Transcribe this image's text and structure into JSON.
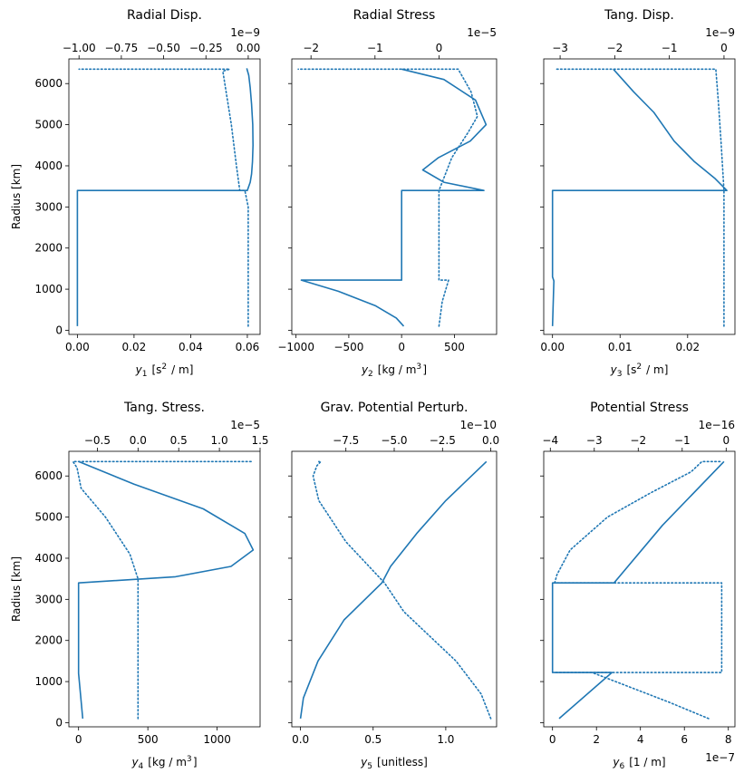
{
  "chart_data": [
    {
      "type": "line",
      "title": "Radial Disp.",
      "xlabel": "$y_1$ [s$^2$ / m]",
      "ylabel": "Radius [km]",
      "ylim": [
        -100,
        6600
      ],
      "yticks": [
        0,
        1000,
        2000,
        3000,
        4000,
        5000,
        6000
      ],
      "bottom_axis": {
        "lim": [
          -0.003,
          0.0645
        ],
        "ticks": [
          0,
          0.02,
          0.04,
          0.06
        ],
        "ticklabels": [
          "0.00",
          "0.02",
          "0.04",
          "0.06"
        ]
      },
      "top_axis": {
        "lim": [
          -1.06,
          0.07
        ],
        "ticks": [
          -1.0,
          -0.75,
          -0.5,
          -0.25,
          0.0
        ],
        "ticklabels": [
          "−1.00",
          "−0.75",
          "−0.50",
          "−0.25",
          "0.00"
        ],
        "exponent": "1e−9"
      },
      "series": [
        {
          "style": "solid",
          "axis": "bottom",
          "x": [
            0.0,
            0.0,
            0.06,
            0.061,
            0.0615,
            0.0618,
            0.062,
            0.0619,
            0.0615,
            0.061,
            0.0605,
            0.0598
          ],
          "y": [
            100,
            3400,
            3400,
            3600,
            3800,
            4100,
            4500,
            5000,
            5500,
            5900,
            6200,
            6370
          ]
        },
        {
          "style": "dotted",
          "axis": "top",
          "x": [
            0.0,
            0.0,
            -0.02,
            -0.05,
            -0.07,
            -0.1,
            -0.15,
            -0.11,
            -0.9,
            -1.0
          ],
          "y": [
            100,
            3000,
            3400,
            3400,
            4000,
            5000,
            6300,
            6350,
            6350,
            6350
          ]
        }
      ]
    },
    {
      "type": "line",
      "title": "Radial Stress",
      "xlabel": "$y_2$ [kg / m$^3$]",
      "ylabel": "",
      "ylim": [
        -100,
        6600
      ],
      "yticks": [
        0,
        1000,
        2000,
        3000,
        4000,
        5000,
        6000
      ],
      "bottom_axis": {
        "lim": [
          -1040,
          900
        ],
        "ticks": [
          -1000,
          -500,
          0,
          500
        ],
        "ticklabels": [
          "−1000",
          "−500",
          "0",
          "500"
        ]
      },
      "top_axis": {
        "lim": [
          -2.3,
          0.9
        ],
        "ticks": [
          -2,
          -1,
          0
        ],
        "ticklabels": [
          "−2",
          "−1",
          "0"
        ],
        "exponent": "1e−5"
      },
      "series": [
        {
          "style": "solid",
          "axis": "bottom",
          "x": [
            20,
            -50,
            -250,
            -600,
            -950,
            0,
            0,
            780,
            400,
            200,
            350,
            650,
            800,
            700,
            400,
            0
          ],
          "y": [
            100,
            300,
            600,
            950,
            1220,
            1220,
            3400,
            3400,
            3600,
            3900,
            4200,
            4600,
            5000,
            5600,
            6100,
            6350
          ]
        },
        {
          "style": "dotted",
          "axis": "top",
          "x": [
            0.0,
            0.05,
            0.15,
            0.0,
            0.0,
            0.05,
            0.2,
            0.45,
            0.6,
            0.5,
            0.3,
            -2.2
          ],
          "y": [
            100,
            700,
            1220,
            1220,
            3400,
            3600,
            4200,
            4800,
            5200,
            5800,
            6350,
            6350
          ]
        }
      ]
    },
    {
      "type": "line",
      "title": "Tang. Disp.",
      "xlabel": "$y_3$ [s$^2$ / m]",
      "ylabel": "",
      "ylim": [
        -100,
        6600
      ],
      "yticks": [
        0,
        1000,
        2000,
        3000,
        4000,
        5000,
        6000
      ],
      "bottom_axis": {
        "lim": [
          -0.0013,
          0.027
        ],
        "ticks": [
          0,
          0.01,
          0.02
        ],
        "ticklabels": [
          "0.00",
          "0.01",
          "0.02"
        ]
      },
      "top_axis": {
        "lim": [
          -3.3,
          0.2
        ],
        "ticks": [
          -3,
          -2,
          -1,
          0
        ],
        "ticklabels": [
          "−3",
          "−2",
          "−1",
          "0"
        ],
        "exponent": "1e−9"
      },
      "series": [
        {
          "style": "solid",
          "axis": "bottom",
          "x": [
            0.0,
            0.0002,
            0.0,
            0.0,
            0.0258,
            0.024,
            0.021,
            0.018,
            0.015,
            0.012,
            0.009
          ],
          "y": [
            100,
            1200,
            1300,
            3400,
            3400,
            3700,
            4100,
            4600,
            5300,
            5800,
            6350
          ]
        },
        {
          "style": "dotted",
          "axis": "top",
          "x": [
            0.0,
            0.0,
            -0.05,
            -0.1,
            -0.15,
            -3.1
          ],
          "y": [
            100,
            3400,
            4500,
            5500,
            6350,
            6350
          ]
        }
      ]
    },
    {
      "type": "line",
      "title": "Tang. Stress.",
      "xlabel": "$y_4$ [kg / m$^3$]",
      "ylabel": "Radius [km]",
      "ylim": [
        -100,
        6600
      ],
      "yticks": [
        0,
        1000,
        2000,
        3000,
        4000,
        5000,
        6000
      ],
      "bottom_axis": {
        "lim": [
          -70,
          1310
        ],
        "ticks": [
          0,
          500,
          1000
        ],
        "ticklabels": [
          "0",
          "500",
          "1000"
        ]
      },
      "top_axis": {
        "lim": [
          -0.85,
          1.5
        ],
        "ticks": [
          -0.5,
          0,
          0.5,
          1.0,
          1.5
        ],
        "ticklabels": [
          "−0.5",
          "0.0",
          "0.5",
          "1.0",
          "1.5"
        ],
        "exponent": "1e−5"
      },
      "series": [
        {
          "style": "solid",
          "axis": "bottom",
          "x": [
            30,
            0,
            0,
            700,
            1100,
            1260,
            1200,
            900,
            400,
            0
          ],
          "y": [
            100,
            1200,
            3400,
            3550,
            3800,
            4200,
            4600,
            5200,
            5800,
            6350
          ]
        },
        {
          "style": "dotted",
          "axis": "top",
          "x": [
            0.0,
            0.0,
            -0.1,
            -0.4,
            -0.7,
            -0.75,
            -0.8,
            1.4
          ],
          "y": [
            100,
            3500,
            4100,
            5000,
            5700,
            6200,
            6350,
            6350
          ]
        }
      ]
    },
    {
      "type": "line",
      "title": "Grav. Potential Perturb.",
      "xlabel": "$y_5$ [unitless]",
      "ylabel": "",
      "ylim": [
        -100,
        6600
      ],
      "yticks": [
        0,
        1000,
        2000,
        3000,
        4000,
        5000,
        6000
      ],
      "bottom_axis": {
        "lim": [
          -0.06,
          1.35
        ],
        "ticks": [
          0.0,
          0.5,
          1.0
        ],
        "ticklabels": [
          "0.0",
          "0.5",
          "1.0"
        ]
      },
      "top_axis": {
        "lim": [
          -10.3,
          0.3
        ],
        "ticks": [
          -7.5,
          -5.0,
          -2.5,
          0.0
        ],
        "ticklabels": [
          "−7.5",
          "−5.0",
          "−2.5",
          "0.0"
        ],
        "exponent": "1e−10"
      },
      "series": [
        {
          "style": "solid",
          "axis": "bottom",
          "x": [
            0.0,
            0.02,
            0.12,
            0.3,
            0.56,
            0.62,
            0.8,
            1.0,
            1.28
          ],
          "y": [
            100,
            600,
            1500,
            2500,
            3400,
            3800,
            4600,
            5400,
            6350
          ]
        },
        {
          "style": "dotted",
          "axis": "top",
          "x": [
            0.0,
            -0.5,
            -1.8,
            -4.5,
            -5.5,
            -7.5,
            -8.9,
            -9.2,
            -9.0,
            -8.8,
            -8.9
          ],
          "y": [
            100,
            700,
            1500,
            2700,
            3400,
            4400,
            5400,
            6000,
            6250,
            6350,
            6350
          ]
        }
      ]
    },
    {
      "type": "line",
      "title": "Potential Stress",
      "xlabel": "$y_6$ [1 / m]",
      "ylabel": "",
      "ylim": [
        -100,
        6600
      ],
      "yticks": [
        0,
        1000,
        2000,
        3000,
        4000,
        5000,
        6000
      ],
      "bottom_axis": {
        "lim": [
          -0.4,
          8.3
        ],
        "ticks": [
          0,
          2,
          4,
          6,
          8
        ],
        "ticklabels": [
          "0",
          "2",
          "4",
          "6",
          "8"
        ],
        "exponent": "1e−7"
      },
      "top_axis": {
        "lim": [
          -4.15,
          0.2
        ],
        "ticks": [
          -4,
          -3,
          -2,
          -1,
          0
        ],
        "ticklabels": [
          "−4",
          "−3",
          "−2",
          "−1",
          "0"
        ],
        "exponent": "1e−16"
      },
      "series": [
        {
          "style": "solid",
          "axis": "bottom",
          "x": [
            0.3,
            2.7,
            0.0,
            0.0,
            2.8,
            5.0,
            7.8
          ],
          "y": [
            100,
            1220,
            1220,
            3400,
            3400,
            4800,
            6350
          ]
        },
        {
          "style": "dotted",
          "axis": "top",
          "x": [
            -0.4,
            -1.3,
            -3.05,
            -3.9,
            -0.1,
            -0.1,
            -3.9,
            -3.85,
            -3.55,
            -2.7,
            -1.7,
            -0.8,
            -0.55,
            -0.1
          ],
          "y": [
            100,
            500,
            1220,
            1220,
            1220,
            3400,
            3400,
            3600,
            4200,
            5000,
            5600,
            6100,
            6350,
            6350
          ]
        }
      ]
    }
  ]
}
